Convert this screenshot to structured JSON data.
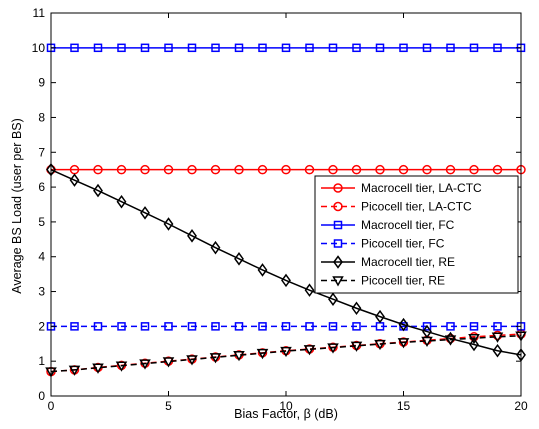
{
  "chart_data": {
    "type": "line",
    "xlabel": "Bias Factor, β (dB)",
    "ylabel": "Average BS Load (user per BS)",
    "xlim": [
      0,
      20
    ],
    "ylim": [
      0,
      11
    ],
    "xticks": [
      0,
      5,
      10,
      15,
      20
    ],
    "yticks": [
      0,
      1,
      2,
      3,
      4,
      5,
      6,
      7,
      8,
      9,
      10,
      11
    ],
    "grid": false,
    "legend_position": "right",
    "x": [
      0,
      1,
      2,
      3,
      4,
      5,
      6,
      7,
      8,
      9,
      10,
      11,
      12,
      13,
      14,
      15,
      16,
      17,
      18,
      19,
      20
    ],
    "series": [
      {
        "name": "Macrocell tier, LA-CTC",
        "color": "#ff0000",
        "dash": "solid",
        "marker": "circle",
        "values": [
          6.5,
          6.5,
          6.5,
          6.5,
          6.5,
          6.5,
          6.5,
          6.5,
          6.5,
          6.5,
          6.5,
          6.5,
          6.5,
          6.5,
          6.5,
          6.5,
          6.5,
          6.5,
          6.5,
          6.5,
          6.5
        ]
      },
      {
        "name": "Picocell tier, LA-CTC",
        "color": "#ff0000",
        "dash": "dashed",
        "marker": "circle",
        "values": [
          0.7,
          0.75,
          0.82,
          0.88,
          0.94,
          1.0,
          1.06,
          1.12,
          1.18,
          1.24,
          1.3,
          1.35,
          1.4,
          1.45,
          1.5,
          1.55,
          1.6,
          1.65,
          1.7,
          1.74,
          1.78
        ]
      },
      {
        "name": "Macrocell tier, FC",
        "color": "#0000ff",
        "dash": "solid",
        "marker": "square",
        "values": [
          10,
          10,
          10,
          10,
          10,
          10,
          10,
          10,
          10,
          10,
          10,
          10,
          10,
          10,
          10,
          10,
          10,
          10,
          10,
          10,
          10
        ]
      },
      {
        "name": "Picocell tier, FC",
        "color": "#0000ff",
        "dash": "dashed",
        "marker": "square",
        "values": [
          2,
          2,
          2,
          2,
          2,
          2,
          2,
          2,
          2,
          2,
          2,
          2,
          2,
          2,
          2,
          2,
          2,
          2,
          2,
          2,
          2
        ]
      },
      {
        "name": "Macrocell tier, RE",
        "color": "#000000",
        "dash": "solid",
        "marker": "diamond",
        "values": [
          6.5,
          6.2,
          5.9,
          5.58,
          5.26,
          4.94,
          4.6,
          4.26,
          3.94,
          3.62,
          3.32,
          3.04,
          2.78,
          2.52,
          2.28,
          2.05,
          1.85,
          1.65,
          1.48,
          1.3,
          1.18
        ]
      },
      {
        "name": "Picocell tier, RE",
        "color": "#000000",
        "dash": "dashed",
        "marker": "triangle-down",
        "values": [
          0.7,
          0.75,
          0.81,
          0.87,
          0.93,
          0.99,
          1.05,
          1.11,
          1.17,
          1.23,
          1.29,
          1.34,
          1.39,
          1.44,
          1.49,
          1.54,
          1.58,
          1.62,
          1.66,
          1.7,
          1.73
        ]
      }
    ]
  }
}
